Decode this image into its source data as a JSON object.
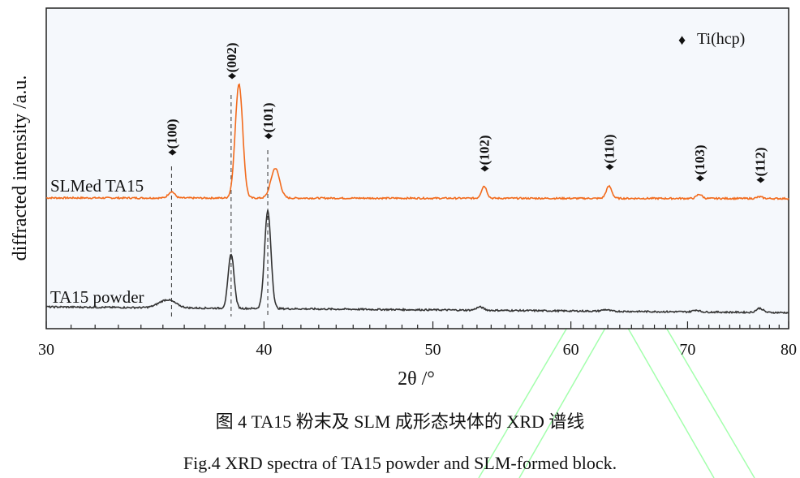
{
  "chart_data": {
    "type": "line",
    "xlabel": "2θ /°",
    "ylabel": "diffracted intensity /a.u.",
    "xlim": [
      30,
      80
    ],
    "xscale": "log",
    "xticks": [
      30,
      40,
      50,
      60,
      70,
      80
    ],
    "ylim": [
      0,
      100
    ],
    "grid": false,
    "legend": {
      "position": "top-right",
      "marker": "♦",
      "label": "Ti(hcp)"
    },
    "colors": {
      "SLMed TA15": "#f26b1d",
      "TA15 powder": "#333333",
      "plot_bg": "#f5f8fc",
      "watermark": "#7dff8a"
    },
    "series": [
      {
        "name": "SLMed TA15",
        "baseline": [
          40.8,
          40.6
        ],
        "peaks": [
          {
            "two_theta": 35.4,
            "height": 2.0,
            "fwhm": 0.35
          },
          {
            "two_theta": 38.7,
            "height": 35.7,
            "fwhm": 0.45
          },
          {
            "two_theta": 40.6,
            "height": 9.3,
            "fwhm": 0.55
          },
          {
            "two_theta": 53.5,
            "height": 3.8,
            "fwhm": 0.45
          },
          {
            "two_theta": 63.1,
            "height": 3.8,
            "fwhm": 0.55
          },
          {
            "two_theta": 71.1,
            "height": 1.3,
            "fwhm": 0.6
          },
          {
            "two_theta": 77.0,
            "height": 0.5,
            "fwhm": 0.7
          }
        ]
      },
      {
        "name": "TA15 powder",
        "baseline": [
          6.8,
          5.0
        ],
        "peaks": [
          {
            "two_theta": 35.2,
            "height": 2.5,
            "fwhm": 0.9
          },
          {
            "two_theta": 38.3,
            "height": 17.0,
            "fwhm": 0.35
          },
          {
            "two_theta": 40.2,
            "height": 30.5,
            "fwhm": 0.4
          },
          {
            "two_theta": 53.2,
            "height": 1.0,
            "fwhm": 0.6
          },
          {
            "two_theta": 62.8,
            "height": 0.5,
            "fwhm": 0.7
          },
          {
            "two_theta": 70.8,
            "height": 0.6,
            "fwhm": 0.7
          },
          {
            "two_theta": 77.0,
            "height": 1.3,
            "fwhm": 0.8
          }
        ]
      }
    ],
    "annotations": [
      {
        "label": "♦(100)",
        "two_theta": 35.4,
        "dashed": true
      },
      {
        "label": "♦(002)",
        "two_theta": 38.3,
        "dashed": true
      },
      {
        "label": "♦(101)",
        "two_theta": 40.2,
        "dashed": true
      },
      {
        "label": "♦(102)",
        "two_theta": 53.5,
        "dashed": false
      },
      {
        "label": "♦(110)",
        "two_theta": 63.1,
        "dashed": false
      },
      {
        "label": "♦(103)",
        "two_theta": 71.1,
        "dashed": false
      },
      {
        "label": "♦(112)",
        "two_theta": 77.0,
        "dashed": false
      }
    ]
  },
  "caption": {
    "chinese": "图 4 TA15 粉末及 SLM 成形态块体的 XRD 谱线",
    "english": "Fig.4 XRD spectra of TA15 powder and SLM-formed block."
  }
}
